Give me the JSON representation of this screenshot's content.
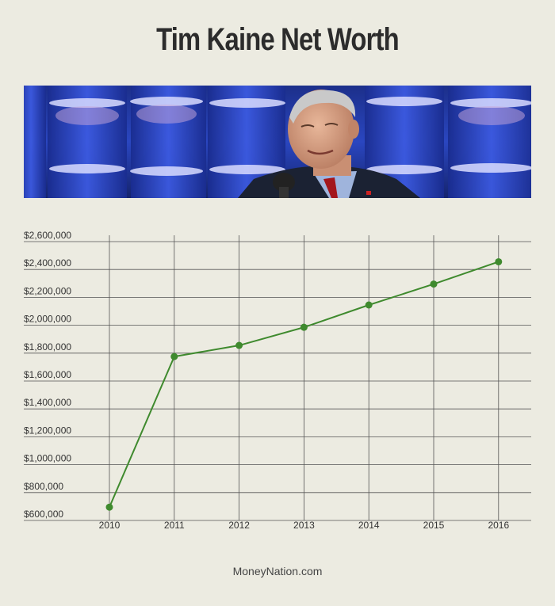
{
  "page": {
    "title": "Tim Kaine Net Worth",
    "footer": "MoneyNation.com"
  },
  "colors": {
    "background": "#ecebe1",
    "line": "#3f8a2e",
    "grid": "#555555"
  },
  "banner": {
    "description_icon": "photo-of-speaker"
  },
  "chart_data": {
    "type": "line",
    "title": "",
    "xlabel": "",
    "ylabel": "",
    "x": [
      "2010",
      "2011",
      "2012",
      "2013",
      "2014",
      "2015",
      "2016"
    ],
    "series": [
      {
        "values": [
          650000,
          1730000,
          1810000,
          1940000,
          2100000,
          2250000,
          2410000
        ]
      }
    ],
    "ylim": [
      600000,
      2600000
    ],
    "yticks": [
      {
        "value": 600000,
        "label": "$600,000"
      },
      {
        "value": 800000,
        "label": "$800,000"
      },
      {
        "value": 1000000,
        "label": "$1,000,000"
      },
      {
        "value": 1200000,
        "label": "$1,200,000"
      },
      {
        "value": 1400000,
        "label": "$1,400,000"
      },
      {
        "value": 1600000,
        "label": "$1,600,000"
      },
      {
        "value": 1800000,
        "label": "$1,800,000"
      },
      {
        "value": 2000000,
        "label": "$2,000,000"
      },
      {
        "value": 2200000,
        "label": "$2,200,000"
      },
      {
        "value": 2400000,
        "label": "$2,400,000"
      },
      {
        "value": 2600000,
        "label": "$2,600,000"
      }
    ],
    "grid": true,
    "legend": "none"
  }
}
